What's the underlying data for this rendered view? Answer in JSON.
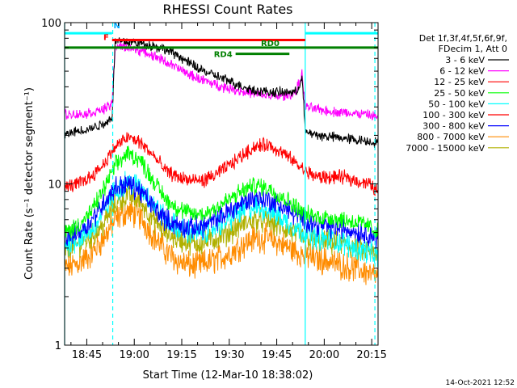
{
  "chart_data": {
    "type": "line",
    "title": "RHESSI Count Rates",
    "xlabel": "Start Time (12-Mar-10 18:38:02)",
    "ylabel": "Count Rate (s⁻¹ detector segment⁻¹)",
    "ylim": [
      1,
      100
    ],
    "yscale": "log",
    "xlim_minutes": [
      0,
      99
    ],
    "x_unit": "minutes after 18:38:02",
    "x_ticks": [
      {
        "label": "18:45",
        "t": 7
      },
      {
        "label": "19:00",
        "t": 22
      },
      {
        "label": "19:15",
        "t": 37
      },
      {
        "label": "19:30",
        "t": 52
      },
      {
        "label": "19:45",
        "t": 67
      },
      {
        "label": "20:00",
        "t": 82
      },
      {
        "label": "20:15",
        "t": 97
      }
    ],
    "y_ticks": [
      {
        "label": "1",
        "v": 1
      },
      {
        "label": "10",
        "v": 10
      },
      {
        "label": "100",
        "v": 100
      }
    ],
    "legend": {
      "header": [
        "Det 1f,3f,4f,5f,6f,9f,",
        "FDecim 1, Att 0"
      ],
      "placement": "right"
    },
    "series": [
      {
        "name": "3 - 6 keV",
        "color": "#000000",
        "noise": 0.025,
        "points": [
          [
            0,
            20
          ],
          [
            3,
            21
          ],
          [
            8,
            22
          ],
          [
            13,
            24
          ],
          [
            15,
            26
          ],
          [
            16,
            78
          ],
          [
            20,
            76
          ],
          [
            25,
            74
          ],
          [
            30,
            70
          ],
          [
            35,
            64
          ],
          [
            40,
            55
          ],
          [
            45,
            49
          ],
          [
            50,
            45
          ],
          [
            55,
            41
          ],
          [
            60,
            38
          ],
          [
            65,
            37
          ],
          [
            70,
            37
          ],
          [
            73,
            37
          ],
          [
            74,
            40
          ],
          [
            75,
            46
          ],
          [
            76,
            21
          ],
          [
            80,
            20
          ],
          [
            85,
            19.5
          ],
          [
            90,
            19
          ],
          [
            95,
            18.5
          ],
          [
            99,
            18
          ]
        ]
      },
      {
        "name": "6 - 12 keV",
        "color": "#ff00ff",
        "noise": 0.025,
        "points": [
          [
            0,
            27
          ],
          [
            5,
            27
          ],
          [
            10,
            28
          ],
          [
            14,
            30
          ],
          [
            15,
            32
          ],
          [
            16,
            72
          ],
          [
            20,
            70
          ],
          [
            25,
            66
          ],
          [
            30,
            60
          ],
          [
            35,
            53
          ],
          [
            40,
            47
          ],
          [
            45,
            43
          ],
          [
            50,
            40
          ],
          [
            55,
            38
          ],
          [
            60,
            36
          ],
          [
            65,
            35
          ],
          [
            70,
            35
          ],
          [
            73,
            37
          ],
          [
            75,
            48
          ],
          [
            76,
            30
          ],
          [
            80,
            29
          ],
          [
            85,
            28
          ],
          [
            90,
            27.5
          ],
          [
            95,
            27
          ],
          [
            99,
            26
          ]
        ]
      },
      {
        "name": "12 - 25 keV",
        "color": "#ff0000",
        "noise": 0.035,
        "points": [
          [
            0,
            9.5
          ],
          [
            4,
            10
          ],
          [
            8,
            11
          ],
          [
            12,
            13
          ],
          [
            16,
            17
          ],
          [
            20,
            19.5
          ],
          [
            24,
            18
          ],
          [
            28,
            15
          ],
          [
            32,
            12
          ],
          [
            36,
            11
          ],
          [
            40,
            10.5
          ],
          [
            44,
            10.5
          ],
          [
            48,
            11.5
          ],
          [
            52,
            13
          ],
          [
            56,
            15
          ],
          [
            60,
            17
          ],
          [
            64,
            17.5
          ],
          [
            68,
            16
          ],
          [
            72,
            14
          ],
          [
            76,
            12
          ],
          [
            80,
            11
          ],
          [
            84,
            11
          ],
          [
            88,
            11
          ],
          [
            92,
            10.5
          ],
          [
            96,
            10
          ],
          [
            99,
            9
          ]
        ]
      },
      {
        "name": "25 - 50 keV",
        "color": "#00ff00",
        "noise": 0.045,
        "points": [
          [
            0,
            5
          ],
          [
            4,
            5.5
          ],
          [
            8,
            6.5
          ],
          [
            12,
            9
          ],
          [
            16,
            13
          ],
          [
            20,
            15.5
          ],
          [
            24,
            14
          ],
          [
            28,
            10.5
          ],
          [
            32,
            8
          ],
          [
            36,
            7
          ],
          [
            40,
            6.5
          ],
          [
            44,
            6.5
          ],
          [
            48,
            7.2
          ],
          [
            52,
            8
          ],
          [
            56,
            9
          ],
          [
            60,
            9.8
          ],
          [
            64,
            9.5
          ],
          [
            68,
            8.5
          ],
          [
            72,
            7.5
          ],
          [
            76,
            6.5
          ],
          [
            80,
            6.2
          ],
          [
            84,
            6.2
          ],
          [
            88,
            6
          ],
          [
            92,
            5.8
          ],
          [
            96,
            5.5
          ],
          [
            99,
            5
          ]
        ]
      },
      {
        "name": "50 - 100 keV",
        "color": "#00ffff",
        "noise": 0.06,
        "points": [
          [
            0,
            4.2
          ],
          [
            4,
            4.5
          ],
          [
            8,
            5
          ],
          [
            12,
            6.5
          ],
          [
            16,
            9
          ],
          [
            20,
            10.5
          ],
          [
            24,
            9.5
          ],
          [
            28,
            7.5
          ],
          [
            32,
            6
          ],
          [
            36,
            5.3
          ],
          [
            40,
            5
          ],
          [
            44,
            5
          ],
          [
            48,
            5.5
          ],
          [
            52,
            6
          ],
          [
            56,
            6.8
          ],
          [
            60,
            7.2
          ],
          [
            64,
            7
          ],
          [
            68,
            6.2
          ],
          [
            72,
            5.5
          ],
          [
            76,
            5
          ],
          [
            80,
            4.6
          ],
          [
            84,
            4.5
          ],
          [
            88,
            4.3
          ],
          [
            92,
            4
          ],
          [
            96,
            3.8
          ],
          [
            99,
            3.5
          ]
        ]
      },
      {
        "name": "100 - 300 keV",
        "color": "#ff0000",
        "noise": 0.0,
        "hidden_under_others": true,
        "points": [
          [
            0,
            9.5
          ],
          [
            99,
            9
          ]
        ]
      },
      {
        "name": "300 - 800 keV",
        "color": "#0000ff",
        "noise": 0.055,
        "points": [
          [
            0,
            4.6
          ],
          [
            4,
            5
          ],
          [
            8,
            5.8
          ],
          [
            12,
            7.5
          ],
          [
            16,
            9.5
          ],
          [
            20,
            10
          ],
          [
            24,
            9
          ],
          [
            28,
            7.2
          ],
          [
            32,
            6
          ],
          [
            36,
            5.5
          ],
          [
            40,
            5.3
          ],
          [
            44,
            5.5
          ],
          [
            48,
            6
          ],
          [
            52,
            6.8
          ],
          [
            56,
            7.6
          ],
          [
            60,
            8.2
          ],
          [
            64,
            8
          ],
          [
            68,
            7.4
          ],
          [
            72,
            6.6
          ],
          [
            76,
            6
          ],
          [
            80,
            5.6
          ],
          [
            84,
            5.4
          ],
          [
            88,
            5.3
          ],
          [
            92,
            5.1
          ],
          [
            96,
            4.9
          ],
          [
            99,
            4.6
          ]
        ]
      },
      {
        "name": "800 - 7000 keV",
        "color": "#ff8c00",
        "noise": 0.07,
        "points": [
          [
            0,
            3
          ],
          [
            4,
            3.2
          ],
          [
            8,
            3.6
          ],
          [
            12,
            4.5
          ],
          [
            16,
            6
          ],
          [
            20,
            6.8
          ],
          [
            24,
            6.2
          ],
          [
            28,
            4.8
          ],
          [
            32,
            3.8
          ],
          [
            36,
            3.3
          ],
          [
            40,
            3.1
          ],
          [
            44,
            3.2
          ],
          [
            48,
            3.4
          ],
          [
            52,
            3.7
          ],
          [
            56,
            4.2
          ],
          [
            60,
            4.6
          ],
          [
            64,
            4.6
          ],
          [
            68,
            4.3
          ],
          [
            72,
            3.9
          ],
          [
            76,
            3.6
          ],
          [
            80,
            3.4
          ],
          [
            84,
            3.3
          ],
          [
            88,
            3.1
          ],
          [
            92,
            3
          ],
          [
            96,
            2.8
          ],
          [
            99,
            2.6
          ]
        ]
      },
      {
        "name": "7000 - 15000 keV",
        "color": "#b0b000",
        "noise": 0.06,
        "points": [
          [
            0,
            4
          ],
          [
            4,
            4.2
          ],
          [
            8,
            4.6
          ],
          [
            12,
            5.5
          ],
          [
            16,
            7.5
          ],
          [
            20,
            8.5
          ],
          [
            24,
            7.8
          ],
          [
            28,
            6
          ],
          [
            32,
            5
          ],
          [
            36,
            4.5
          ],
          [
            40,
            4.3
          ],
          [
            44,
            4.3
          ],
          [
            48,
            4.6
          ],
          [
            52,
            5
          ],
          [
            56,
            5.6
          ],
          [
            60,
            6
          ],
          [
            64,
            5.9
          ],
          [
            68,
            5.4
          ],
          [
            72,
            5
          ],
          [
            76,
            4.6
          ],
          [
            80,
            4.4
          ],
          [
            84,
            4.3
          ],
          [
            88,
            4.2
          ],
          [
            92,
            4
          ],
          [
            96,
            3.8
          ],
          [
            99,
            3.5
          ]
        ]
      }
    ],
    "vertical_markers": [
      {
        "t": 0,
        "style": "solid",
        "color": "#00ffff"
      },
      {
        "t": 15.2,
        "style": "dashed",
        "color": "#00ffff"
      },
      {
        "t": 76,
        "style": "solid",
        "color": "#00ffff"
      },
      {
        "t": 98,
        "style": "dashed",
        "color": "#00ffff"
      }
    ],
    "bars": [
      {
        "label": "",
        "color": "#00ffff",
        "t_start": 0,
        "t_end": 15,
        "level": 86
      },
      {
        "label": "",
        "color": "#00ffff",
        "t_start": 76,
        "t_end": 99,
        "level": 86
      },
      {
        "label": "F",
        "color": "#ff0000",
        "t_start": 15,
        "t_end": 76,
        "level": 78
      },
      {
        "label": "RD0",
        "color": "#008000",
        "t_start": 0,
        "t_end": 99,
        "level": 70
      },
      {
        "label": "RD4",
        "color": "#008000",
        "t_start": 54,
        "t_end": 71,
        "level": 64
      }
    ],
    "flags": [
      {
        "label": "F",
        "color": "#ff0000"
      },
      {
        "label": "N",
        "color": "#00aaff"
      }
    ],
    "annotation_date": "14-Oct-2021 12:52"
  }
}
